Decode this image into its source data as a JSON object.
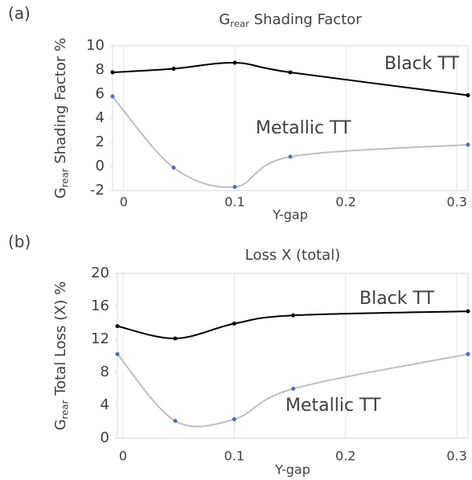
{
  "chart_data": [
    {
      "type": "line",
      "panel": "(a)",
      "title": [
        "G",
        "rear",
        " Shading Factor"
      ],
      "x_label": "Y-gap",
      "y_label": [
        "G",
        "rear",
        " Shading Factor %"
      ],
      "x": [
        -0.01,
        0.045,
        0.1,
        0.15,
        0.31
      ],
      "series": [
        {
          "name": "Black TT",
          "color": "#000000",
          "values": [
            7.8,
            8.1,
            8.6,
            7.8,
            5.9
          ]
        },
        {
          "name": "Metallic TT",
          "color": "#bfbfbf",
          "values": [
            5.8,
            -0.1,
            -1.7,
            0.8,
            1.8
          ]
        }
      ],
      "xlim": [
        -0.01,
        0.31
      ],
      "xticks": [
        0,
        0.1,
        0.2,
        0.3
      ],
      "ylim": [
        -2,
        10
      ],
      "yticks": [
        -2,
        0,
        2,
        4,
        6,
        8,
        10
      ],
      "grid": true
    },
    {
      "type": "line",
      "panel": "(b)",
      "title": "Loss X (total)",
      "x_label": "Y-gap",
      "y_label": [
        "G",
        "rear",
        " Total Loss (X) %"
      ],
      "x": [
        -0.005,
        0.047,
        0.1,
        0.153,
        0.31
      ],
      "series": [
        {
          "name": "Black TT",
          "color": "#000000",
          "values": [
            13.6,
            12.1,
            13.9,
            14.9,
            15.4
          ]
        },
        {
          "name": "Metallic TT",
          "color": "#bfbfbf",
          "values": [
            10.2,
            2.1,
            2.3,
            6.0,
            10.2
          ]
        }
      ],
      "xlim": [
        -0.005,
        0.31
      ],
      "xticks": [
        0,
        0.1,
        0.2,
        0.3
      ],
      "ylim": [
        0,
        20
      ],
      "yticks": [
        0,
        4,
        8,
        12,
        16,
        20
      ],
      "grid": true
    }
  ]
}
